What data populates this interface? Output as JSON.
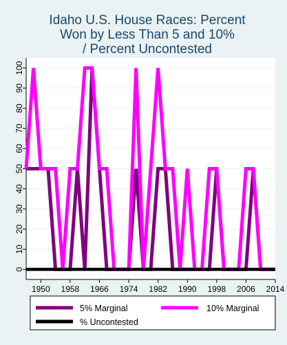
{
  "chart_data": {
    "type": "line",
    "title_lines": [
      "Idaho U.S. House Races: Percent",
      "Won by Less Than 5 and 10%",
      "/ Percent Uncontested"
    ],
    "xlim": [
      1946,
      2014
    ],
    "ylim": [
      -5,
      105
    ],
    "x_ticks": [
      1950,
      1958,
      1966,
      1974,
      1982,
      1990,
      1998,
      2006,
      2014
    ],
    "y_ticks": [
      0,
      10,
      20,
      30,
      40,
      50,
      60,
      70,
      80,
      90,
      100
    ],
    "grid": true,
    "legend_position": "bottom",
    "x": [
      1946,
      1948,
      1950,
      1952,
      1954,
      1956,
      1958,
      1960,
      1962,
      1964,
      1966,
      1968,
      1970,
      1972,
      1974,
      1976,
      1978,
      1980,
      1982,
      1984,
      1986,
      1988,
      1990,
      1992,
      1994,
      1996,
      1998,
      2000,
      2002,
      2004,
      2006,
      2008,
      2010,
      2012,
      2014
    ],
    "series": [
      {
        "name": "5% Marginal",
        "color": "#800080",
        "values": [
          50,
          50,
          50,
          50,
          0,
          0,
          0,
          50,
          0,
          100,
          50,
          0,
          0,
          0,
          0,
          50,
          0,
          0,
          50,
          50,
          0,
          0,
          0,
          0,
          0,
          0,
          50,
          0,
          0,
          0,
          0,
          50,
          0,
          0,
          0
        ]
      },
      {
        "name": "10% Marginal",
        "color": "#ff00ff",
        "values": [
          50,
          100,
          50,
          50,
          50,
          0,
          50,
          50,
          100,
          100,
          50,
          50,
          0,
          0,
          0,
          100,
          0,
          50,
          100,
          50,
          50,
          0,
          50,
          0,
          0,
          50,
          50,
          0,
          0,
          0,
          50,
          50,
          0,
          0,
          0
        ]
      },
      {
        "name": "% Uncontested",
        "color": "#000000",
        "values": [
          0,
          0,
          0,
          0,
          0,
          0,
          0,
          0,
          0,
          0,
          0,
          0,
          0,
          0,
          0,
          0,
          0,
          0,
          0,
          0,
          0,
          0,
          0,
          0,
          0,
          0,
          0,
          0,
          0,
          0,
          0,
          0,
          0,
          0,
          0
        ]
      }
    ]
  }
}
